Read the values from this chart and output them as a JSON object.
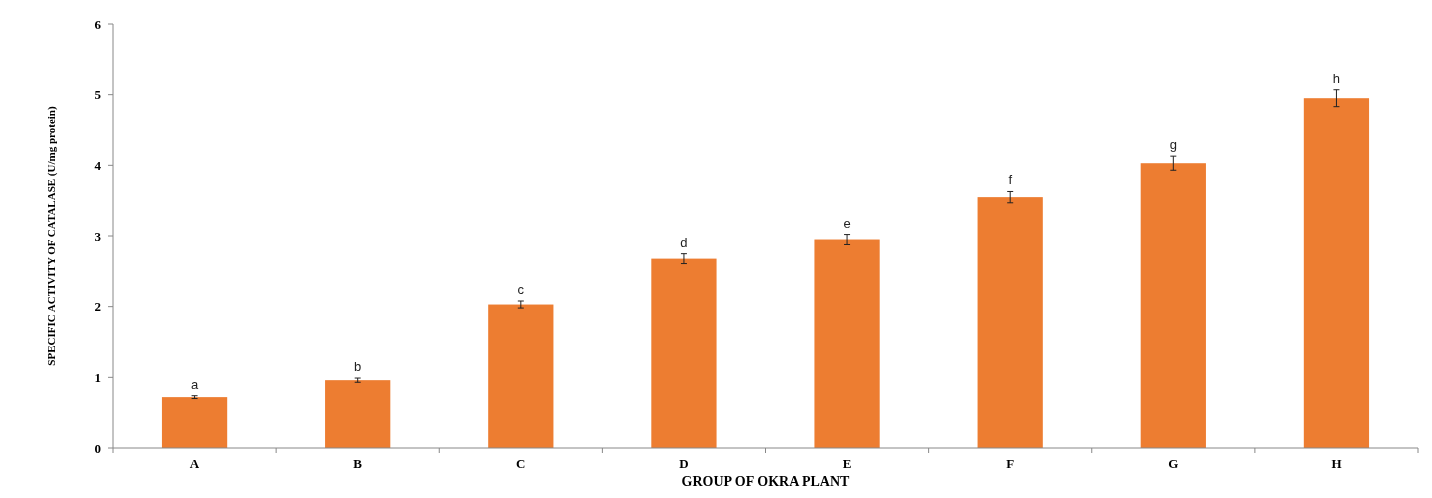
{
  "chart_data": {
    "type": "bar",
    "xlabel": "GROUP OF OKRA PLANT",
    "ylabel": "SPECIFIC ACTIVITY OF CATALASE (U/mg protein)",
    "categories": [
      "A",
      "B",
      "C",
      "D",
      "E",
      "F",
      "G",
      "H"
    ],
    "values": [
      0.72,
      0.96,
      2.03,
      2.68,
      2.95,
      3.55,
      4.03,
      4.95
    ],
    "errors": [
      0.02,
      0.03,
      0.05,
      0.07,
      0.07,
      0.08,
      0.1,
      0.12
    ],
    "color": "#ed7d31",
    "ylim": [
      0,
      6
    ],
    "yticks": [
      0,
      1,
      2,
      3,
      4,
      5,
      6
    ],
    "grid": false,
    "annotations": [
      {
        "text": "a",
        "x": "A",
        "y": 0.74
      },
      {
        "text": "b",
        "x": "B",
        "y": 0.99
      },
      {
        "text": "c",
        "x": "C",
        "y": 2.08
      },
      {
        "text": "d",
        "x": "D",
        "y": 2.75
      },
      {
        "text": "e",
        "x": "E",
        "y": 3.02
      },
      {
        "text": "f",
        "x": "F",
        "y": 3.63
      },
      {
        "text": "g",
        "x": "G",
        "y": 4.13
      },
      {
        "text": "h",
        "x": "H",
        "y": 5.07
      }
    ]
  }
}
